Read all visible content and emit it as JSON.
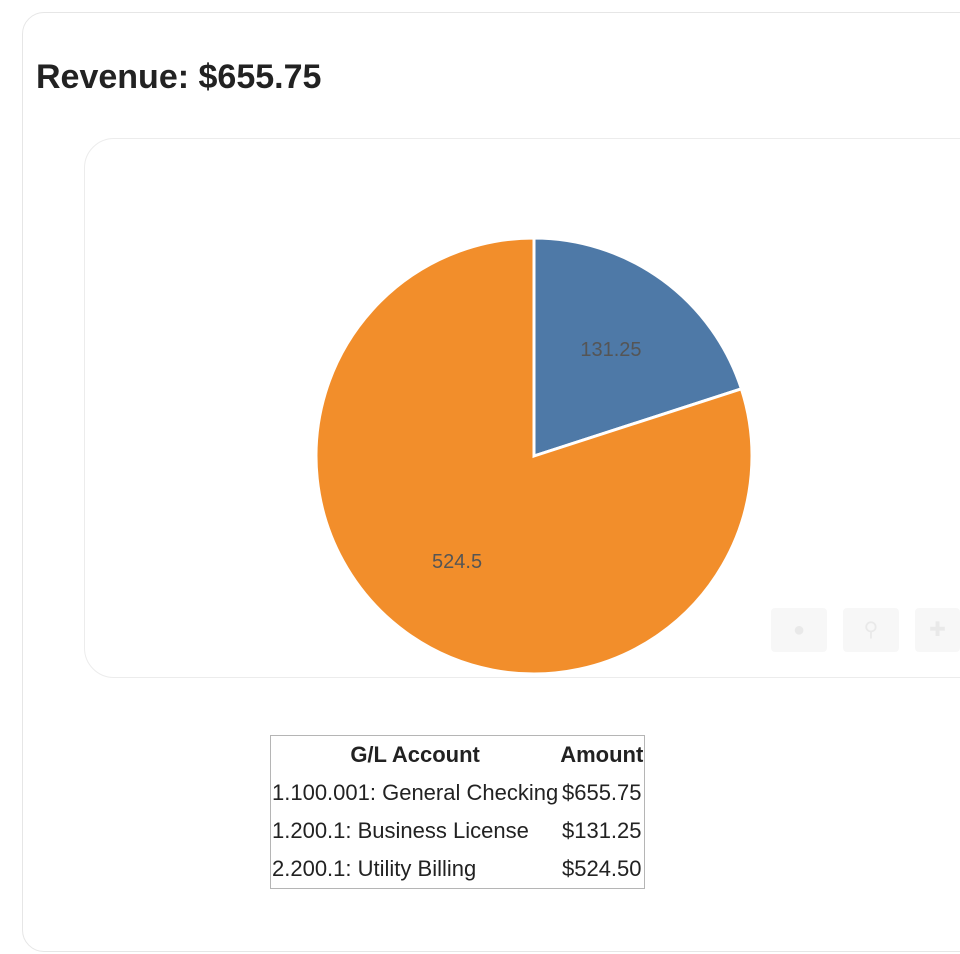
{
  "title": "Revenue: $655.75",
  "chart_data": {
    "type": "pie",
    "start_angle_deg": 0,
    "direction": "clockwise",
    "slices": [
      {
        "label": "131.25",
        "value": 131.25,
        "color": "#4e79a7"
      },
      {
        "label": "524.5",
        "value": 524.5,
        "color": "#f28e2b"
      }
    ],
    "title": "",
    "legend": "none"
  },
  "table": {
    "headers": [
      "G/L Account",
      "Amount"
    ],
    "rows": [
      [
        "1.100.001: General Checking",
        "$655.75"
      ],
      [
        "1.200.1: Business License",
        "$131.25"
      ],
      [
        "2.200.1: Utility Billing",
        "$524.50"
      ]
    ]
  },
  "toolbar": {
    "icons": [
      "camera-icon",
      "zoom-icon",
      "pan-icon"
    ]
  }
}
